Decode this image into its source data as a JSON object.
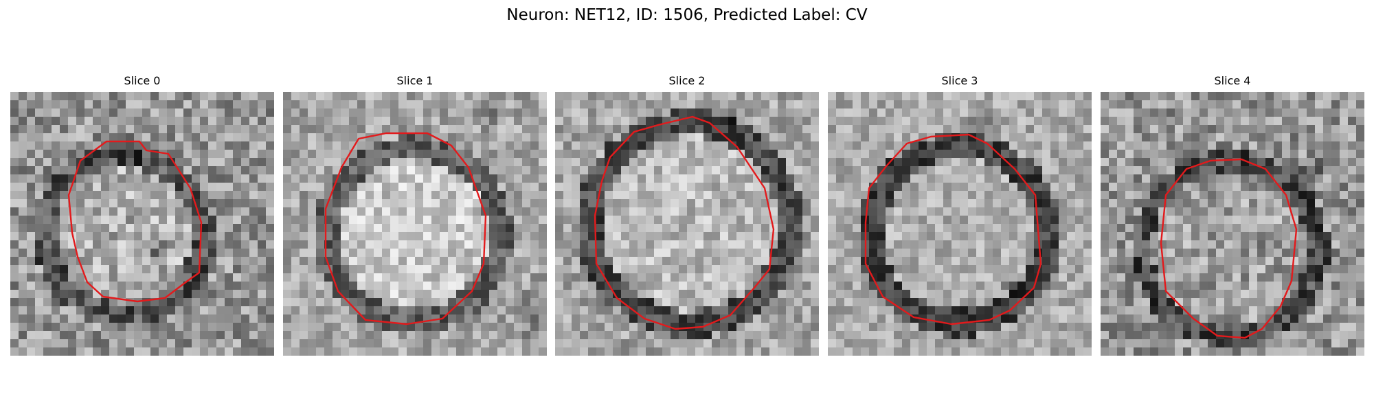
{
  "figure": {
    "title": "Neuron: NET12, ID: 1506, Predicted Label: CV",
    "contour_color": "#e31a1c",
    "slices": [
      {
        "title": "Slice 0"
      },
      {
        "title": "Slice 1"
      },
      {
        "title": "Slice 2"
      },
      {
        "title": "Slice 3"
      },
      {
        "title": "Slice 4"
      }
    ]
  }
}
